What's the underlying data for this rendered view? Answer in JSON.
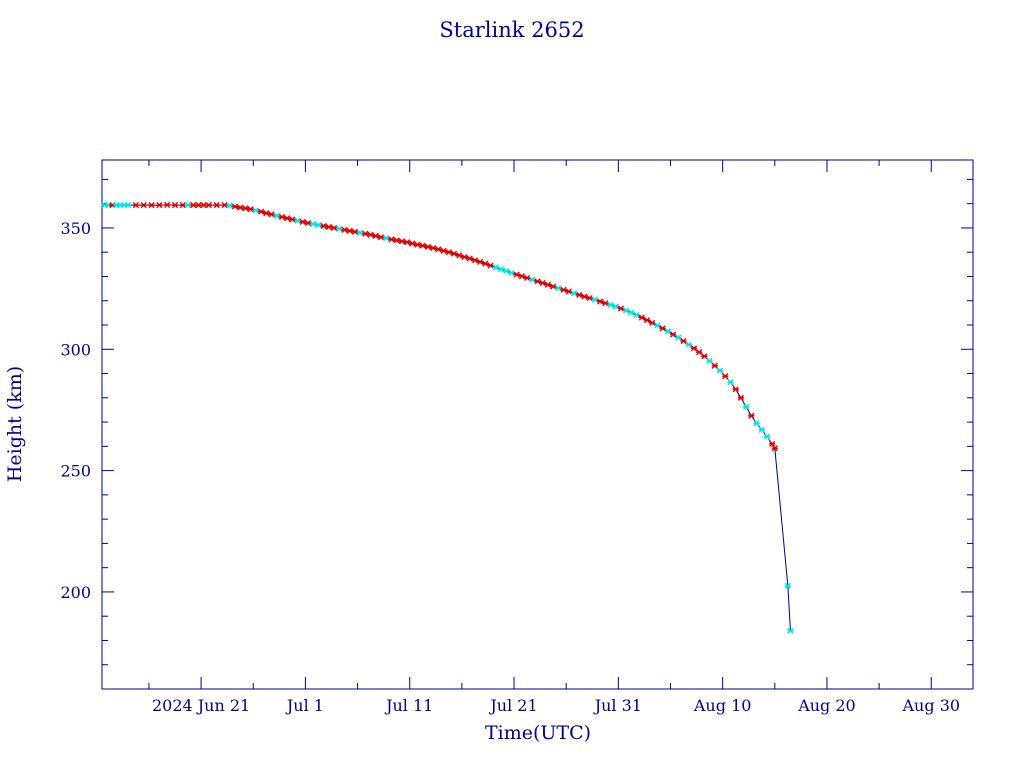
{
  "chart_data": {
    "type": "line",
    "title": "Starlink 2652",
    "xlabel": "Time(UTC)",
    "ylabel": "Height (km)",
    "x_ticks": [
      {
        "date": "2024-06-21",
        "label": "2024 Jun 21"
      },
      {
        "date": "2024-07-01",
        "label": "Jul  1"
      },
      {
        "date": "2024-07-11",
        "label": "Jul 11"
      },
      {
        "date": "2024-07-21",
        "label": "Jul 21"
      },
      {
        "date": "2024-07-31",
        "label": "Jul 31"
      },
      {
        "date": "2024-08-10",
        "label": "Aug 10"
      },
      {
        "date": "2024-08-20",
        "label": "Aug 20"
      },
      {
        "date": "2024-08-30",
        "label": "Aug 30"
      }
    ],
    "y_ticks": [
      200,
      250,
      300,
      350
    ],
    "xlim": [
      "2024-06-11T12:00",
      "2024-09-03T00:00"
    ],
    "ylim": [
      160,
      378
    ],
    "colors": {
      "axis": "#00008b",
      "line": "#00008b",
      "marker_a": "#e00000",
      "marker_b": "#00e5e5"
    },
    "series": [
      {
        "values": [
          [
            "2024-06-11T18:00",
            359.4,
            "b"
          ],
          [
            "2024-06-12T03:00",
            359.4,
            "b"
          ],
          [
            "2024-06-12T12:00",
            359.4,
            "a"
          ],
          [
            "2024-06-12T21:00",
            359.4,
            "b"
          ],
          [
            "2024-06-13T06:00",
            359.4,
            "b"
          ],
          [
            "2024-06-13T15:00",
            359.4,
            "b"
          ],
          [
            "2024-06-14T00:00",
            359.4,
            "b"
          ],
          [
            "2024-06-14T18:00",
            359.4,
            "a"
          ],
          [
            "2024-06-15T12:00",
            359.4,
            "a"
          ],
          [
            "2024-06-16T06:00",
            359.4,
            "a"
          ],
          [
            "2024-06-17T00:00",
            359.4,
            "a"
          ],
          [
            "2024-06-17T18:00",
            359.5,
            "a"
          ],
          [
            "2024-06-18T12:00",
            359.4,
            "a"
          ],
          [
            "2024-06-19T06:00",
            359.4,
            "a"
          ],
          [
            "2024-06-19T18:00",
            359.4,
            "b"
          ],
          [
            "2024-06-20T06:00",
            359.4,
            "a"
          ],
          [
            "2024-06-20T18:00",
            359.4,
            "a"
          ],
          [
            "2024-06-21T06:00",
            359.4,
            "a"
          ],
          [
            "2024-06-21T18:00",
            359.4,
            "a"
          ],
          [
            "2024-06-22T12:00",
            359.4,
            "a"
          ],
          [
            "2024-06-23T06:00",
            359.4,
            "a"
          ],
          [
            "2024-06-23T18:00",
            359.2,
            "b"
          ],
          [
            "2024-06-24T06:00",
            358.8,
            "a"
          ],
          [
            "2024-06-24T18:00",
            358.4,
            "a"
          ],
          [
            "2024-06-25T06:00",
            358.1,
            "a"
          ],
          [
            "2024-06-25T18:00",
            357.7,
            "a"
          ],
          [
            "2024-06-26T06:00",
            357.2,
            "b"
          ],
          [
            "2024-06-26T18:00",
            356.7,
            "a"
          ],
          [
            "2024-06-27T06:00",
            356.1,
            "a"
          ],
          [
            "2024-06-27T18:00",
            355.6,
            "a"
          ],
          [
            "2024-06-28T06:00",
            355.0,
            "b"
          ],
          [
            "2024-06-28T18:00",
            354.5,
            "a"
          ],
          [
            "2024-06-29T06:00",
            354.0,
            "a"
          ],
          [
            "2024-06-29T18:00",
            353.5,
            "a"
          ],
          [
            "2024-06-30T06:00",
            353.0,
            "b"
          ],
          [
            "2024-06-30T18:00",
            352.5,
            "a"
          ],
          [
            "2024-07-01T06:00",
            352.0,
            "a"
          ],
          [
            "2024-07-01T18:00",
            351.6,
            "b"
          ],
          [
            "2024-07-02T06:00",
            351.2,
            "b"
          ],
          [
            "2024-07-02T18:00",
            350.8,
            "a"
          ],
          [
            "2024-07-03T06:00",
            350.4,
            "a"
          ],
          [
            "2024-07-03T18:00",
            350.0,
            "a"
          ],
          [
            "2024-07-04T06:00",
            349.6,
            "b"
          ],
          [
            "2024-07-04T18:00",
            349.2,
            "a"
          ],
          [
            "2024-07-05T06:00",
            348.8,
            "a"
          ],
          [
            "2024-07-05T18:00",
            348.4,
            "a"
          ],
          [
            "2024-07-06T06:00",
            348.0,
            "b"
          ],
          [
            "2024-07-06T18:00",
            347.6,
            "a"
          ],
          [
            "2024-07-07T06:00",
            347.2,
            "a"
          ],
          [
            "2024-07-07T18:00",
            346.7,
            "a"
          ],
          [
            "2024-07-08T06:00",
            346.2,
            "a"
          ],
          [
            "2024-07-08T18:00",
            345.8,
            "b"
          ],
          [
            "2024-07-09T06:00",
            345.3,
            "a"
          ],
          [
            "2024-07-09T18:00",
            344.9,
            "a"
          ],
          [
            "2024-07-10T06:00",
            344.5,
            "a"
          ],
          [
            "2024-07-10T18:00",
            344.1,
            "a"
          ],
          [
            "2024-07-11T06:00",
            343.6,
            "a"
          ],
          [
            "2024-07-11T18:00",
            343.1,
            "a"
          ],
          [
            "2024-07-12T06:00",
            342.7,
            "a"
          ],
          [
            "2024-07-12T18:00",
            342.2,
            "a"
          ],
          [
            "2024-07-13T06:00",
            341.7,
            "a"
          ],
          [
            "2024-07-13T18:00",
            341.2,
            "a"
          ],
          [
            "2024-07-14T06:00",
            340.6,
            "a"
          ],
          [
            "2024-07-14T18:00",
            340.0,
            "a"
          ],
          [
            "2024-07-15T06:00",
            339.4,
            "a"
          ],
          [
            "2024-07-15T18:00",
            338.7,
            "a"
          ],
          [
            "2024-07-16T06:00",
            338.0,
            "a"
          ],
          [
            "2024-07-16T18:00",
            337.4,
            "a"
          ],
          [
            "2024-07-17T06:00",
            336.7,
            "a"
          ],
          [
            "2024-07-17T18:00",
            336.0,
            "a"
          ],
          [
            "2024-07-18T06:00",
            335.3,
            "a"
          ],
          [
            "2024-07-18T18:00",
            334.5,
            "a"
          ],
          [
            "2024-07-19T06:00",
            333.8,
            "b"
          ],
          [
            "2024-07-19T18:00",
            333.0,
            "b"
          ],
          [
            "2024-07-20T06:00",
            332.3,
            "b"
          ],
          [
            "2024-07-20T18:00",
            331.5,
            "b"
          ],
          [
            "2024-07-21T06:00",
            330.8,
            "a"
          ],
          [
            "2024-07-21T18:00",
            330.1,
            "a"
          ],
          [
            "2024-07-22T06:00",
            329.4,
            "a"
          ],
          [
            "2024-07-22T18:00",
            328.7,
            "b"
          ],
          [
            "2024-07-23T06:00",
            328.0,
            "a"
          ],
          [
            "2024-07-23T18:00",
            327.3,
            "a"
          ],
          [
            "2024-07-24T06:00",
            326.6,
            "a"
          ],
          [
            "2024-07-24T18:00",
            325.9,
            "a"
          ],
          [
            "2024-07-25T06:00",
            325.2,
            "b"
          ],
          [
            "2024-07-25T18:00",
            324.5,
            "a"
          ],
          [
            "2024-07-26T06:00",
            323.8,
            "a"
          ],
          [
            "2024-07-26T18:00",
            323.1,
            "b"
          ],
          [
            "2024-07-27T06:00",
            322.4,
            "a"
          ],
          [
            "2024-07-27T18:00",
            321.7,
            "a"
          ],
          [
            "2024-07-28T06:00",
            321.1,
            "a"
          ],
          [
            "2024-07-28T18:00",
            320.4,
            "b"
          ],
          [
            "2024-07-29T06:00",
            319.7,
            "a"
          ],
          [
            "2024-07-29T18:00",
            319.0,
            "a"
          ],
          [
            "2024-07-30T06:00",
            318.3,
            "b"
          ],
          [
            "2024-07-30T18:00",
            317.6,
            "b"
          ],
          [
            "2024-07-31T06:00",
            316.8,
            "a"
          ],
          [
            "2024-07-31T18:00",
            316.0,
            "b"
          ],
          [
            "2024-08-01T06:00",
            315.1,
            "b"
          ],
          [
            "2024-08-01T18:00",
            314.1,
            "b"
          ],
          [
            "2024-08-02T06:00",
            313.1,
            "a"
          ],
          [
            "2024-08-02T18:00",
            312.0,
            "a"
          ],
          [
            "2024-08-03T06:00",
            310.9,
            "a"
          ],
          [
            "2024-08-03T18:00",
            309.8,
            "b"
          ],
          [
            "2024-08-04T06:00",
            308.6,
            "a"
          ],
          [
            "2024-08-04T18:00",
            307.4,
            "b"
          ],
          [
            "2024-08-05T06:00",
            306.1,
            "a"
          ],
          [
            "2024-08-05T18:00",
            304.8,
            "b"
          ],
          [
            "2024-08-06T06:00",
            303.4,
            "a"
          ],
          [
            "2024-08-06T18:00",
            301.9,
            "b"
          ],
          [
            "2024-08-07T06:00",
            300.4,
            "a"
          ],
          [
            "2024-08-07T18:00",
            298.8,
            "a"
          ],
          [
            "2024-08-08T06:00",
            297.1,
            "a"
          ],
          [
            "2024-08-08T18:00",
            295.2,
            "b"
          ],
          [
            "2024-08-09T06:00",
            293.2,
            "a"
          ],
          [
            "2024-08-09T18:00",
            291.2,
            "b"
          ],
          [
            "2024-08-10T06:00",
            288.9,
            "a"
          ],
          [
            "2024-08-10T18:00",
            286.4,
            "b"
          ],
          [
            "2024-08-11T06:00",
            283.5,
            "a"
          ],
          [
            "2024-08-11T18:00",
            280.0,
            "a"
          ],
          [
            "2024-08-12T06:00",
            276.3,
            "b"
          ],
          [
            "2024-08-12T18:00",
            272.6,
            "a"
          ],
          [
            "2024-08-13T06:00",
            269.5,
            "b"
          ],
          [
            "2024-08-13T18:00",
            266.8,
            "b"
          ],
          [
            "2024-08-14T06:00",
            264.0,
            "b"
          ],
          [
            "2024-08-14T18:00",
            261.0,
            "a"
          ],
          [
            "2024-08-15T00:00",
            259.2,
            "a"
          ],
          [
            "2024-08-16T06:00",
            202.5,
            "b"
          ],
          [
            "2024-08-16T12:00",
            184.0,
            "b"
          ]
        ]
      }
    ]
  }
}
